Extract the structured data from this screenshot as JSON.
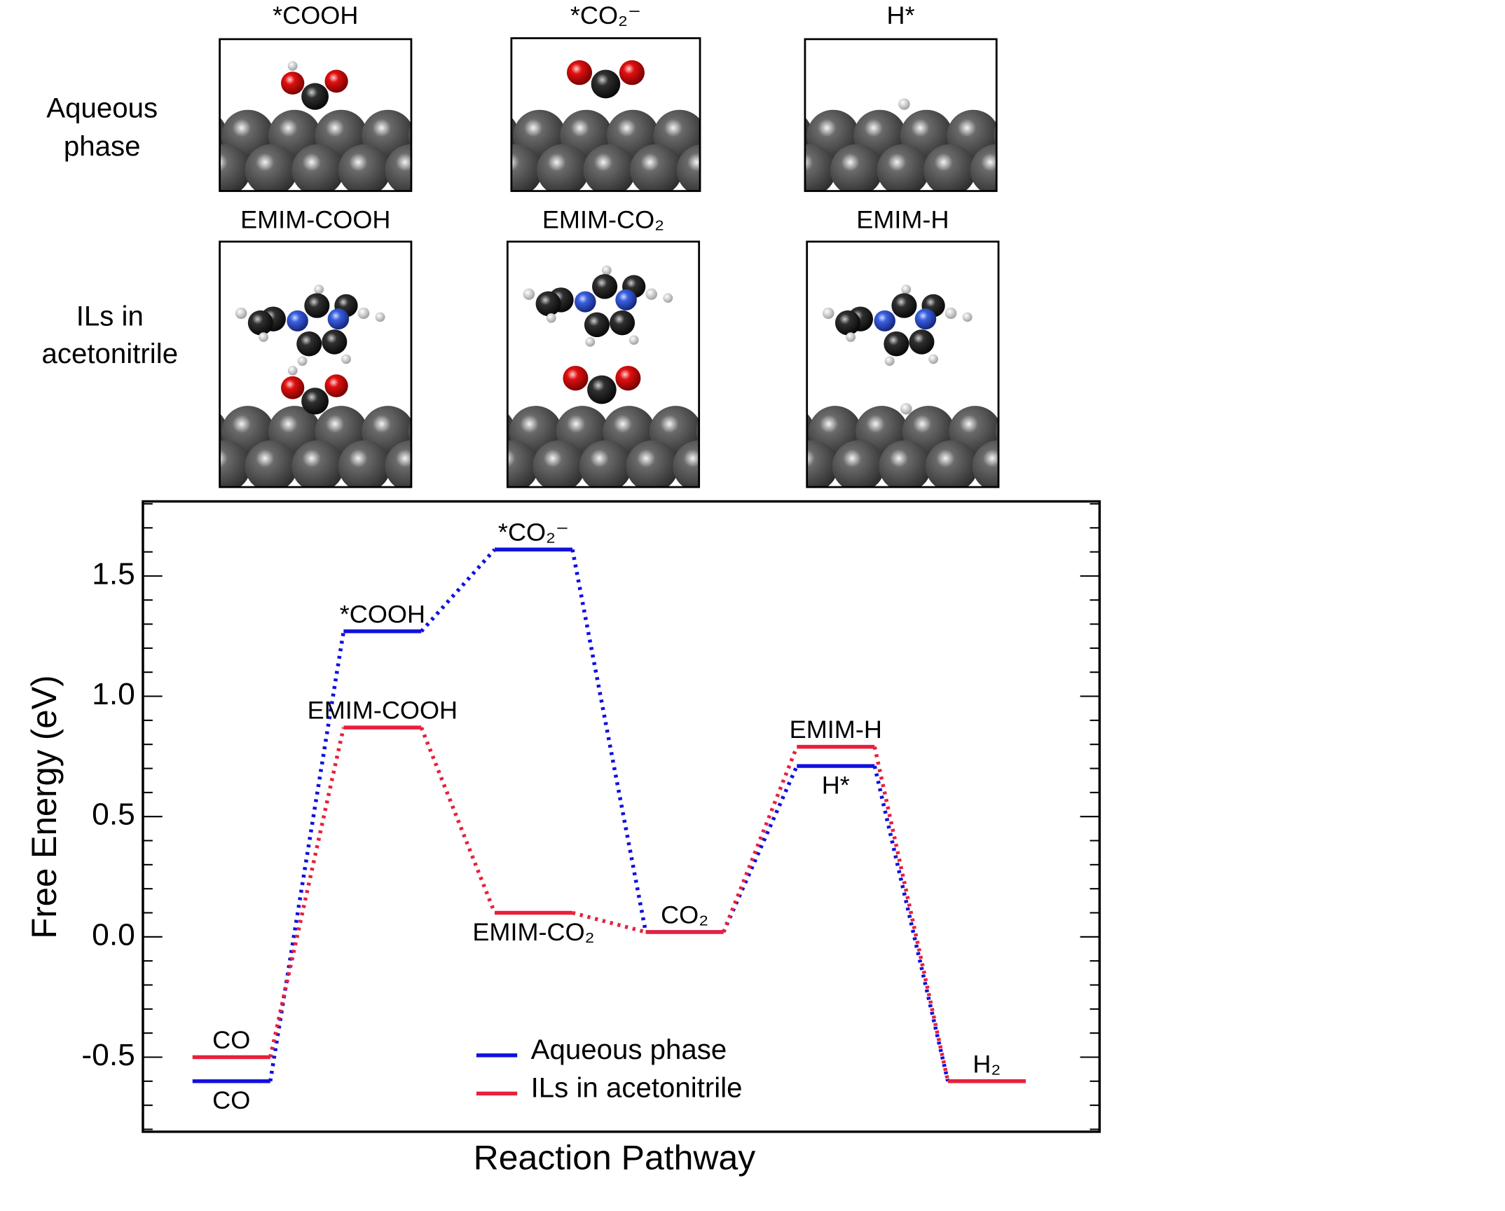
{
  "structures": {
    "rows": [
      {
        "label": "Aqueous phase",
        "titles": [
          "*COOH",
          "*CO₂⁻",
          "H*"
        ]
      },
      {
        "label": "ILs in acetonitrile",
        "titles": [
          "EMIM-COOH",
          "EMIM-CO₂",
          "EMIM-H"
        ]
      }
    ]
  },
  "chart_data": {
    "type": "step",
    "ylabel": "Free Energy (eV)",
    "xlabel": "Reaction Pathway",
    "ylim": [
      -0.81,
      1.81
    ],
    "yticks": [
      -0.5,
      {
        "value": 0,
        "label": "0.0"
      },
      0.5,
      {
        "value": 1,
        "label": "1.0"
      },
      1.5
    ],
    "yminor_ticks": [
      -0.8,
      -0.7,
      -0.6,
      -0.4,
      -0.3,
      -0.2,
      -0.1,
      0.1,
      0.2,
      0.3,
      0.4,
      0.6,
      0.7,
      0.8,
      0.9,
      1.1,
      1.2,
      1.3,
      1.4,
      1.6,
      1.7,
      1.8
    ],
    "legend": "lower center",
    "series": [
      {
        "name": "Aqueous phase",
        "color": "#1010e0",
        "values": [
          -0.6,
          1.27,
          1.61,
          0.02,
          0.71,
          -0.6
        ],
        "labels": [
          "CO",
          "*COOH",
          "*CO₂⁻",
          "CO₂",
          "H*",
          null
        ],
        "label_positions": [
          "below",
          "above",
          "above",
          "above",
          "below",
          null
        ]
      },
      {
        "name": "ILs in acetonitrile",
        "color": "#e8203c",
        "values": [
          -0.5,
          0.87,
          0.1,
          0.02,
          0.79,
          -0.6
        ],
        "labels": [
          "CO",
          "EMIM-COOH",
          "EMIM-CO₂",
          null,
          "EMIM-H",
          "H₂"
        ],
        "label_positions": [
          "above",
          "above",
          "below",
          null,
          "above",
          "above"
        ]
      }
    ]
  }
}
